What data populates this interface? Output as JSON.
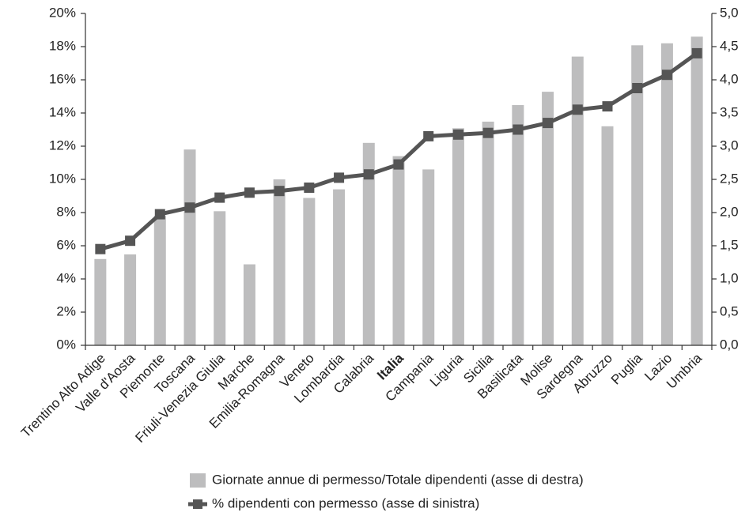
{
  "chart_data": {
    "type": "combo",
    "categories": [
      "Trentino Alto Adige",
      "Valle d'Aosta",
      "Piemonte",
      "Toscana",
      "Friuli-Venezia Giulia",
      "Marche",
      "Emilia-Romagna",
      "Veneto",
      "Lombardia",
      "Calabria",
      "Italia",
      "Campania",
      "Liguria",
      "Sicilia",
      "Basilicata",
      "Molise",
      "Sardegna",
      "Abruzzo",
      "Puglia",
      "Lazio",
      "Umbria"
    ],
    "highlight": "Italia",
    "series": [
      {
        "name": "Giornate annue di permesso/Totale dipendenti (asse di destra)",
        "type": "bar",
        "axis": "y2",
        "color": "#bdbdbe",
        "values": [
          1.3,
          1.37,
          1.95,
          2.95,
          2.02,
          1.22,
          2.5,
          2.22,
          2.35,
          3.05,
          2.85,
          2.65,
          3.27,
          3.37,
          3.62,
          3.82,
          4.35,
          3.3,
          4.52,
          4.55,
          4.65
        ]
      },
      {
        "name": "% dipendenti con permesso (asse di sinistra)",
        "type": "line",
        "axis": "y",
        "color": "#555555",
        "values": [
          5.8,
          6.3,
          7.9,
          8.3,
          8.9,
          9.2,
          9.3,
          9.5,
          10.1,
          10.3,
          10.9,
          12.6,
          12.7,
          12.8,
          13.0,
          13.4,
          14.2,
          14.4,
          15.5,
          16.3,
          17.6
        ]
      }
    ],
    "ylim": [
      0,
      20
    ],
    "yticks": [
      {
        "value": 0,
        "label": "0%"
      },
      {
        "value": 2,
        "label": "2%"
      },
      {
        "value": 4,
        "label": "4%"
      },
      {
        "value": 6,
        "label": "6%"
      },
      {
        "value": 8,
        "label": "8%"
      },
      {
        "value": 10,
        "label": "10%"
      },
      {
        "value": 12,
        "label": "12%"
      },
      {
        "value": 14,
        "label": "14%"
      },
      {
        "value": 16,
        "label": "16%"
      },
      {
        "value": 18,
        "label": "18%"
      },
      {
        "value": 20,
        "label": "20%"
      }
    ],
    "y2lim": [
      0,
      5
    ],
    "y2ticks": [
      {
        "value": 0,
        "label": "0,0"
      },
      {
        "value": 0.5,
        "label": "0,5"
      },
      {
        "value": 1,
        "label": "1,0"
      },
      {
        "value": 1.5,
        "label": "1,5"
      },
      {
        "value": 2,
        "label": "2,0"
      },
      {
        "value": 2.5,
        "label": "2,5"
      },
      {
        "value": 3,
        "label": "3,0"
      },
      {
        "value": 3.5,
        "label": "3,5"
      },
      {
        "value": 4,
        "label": "4,0"
      },
      {
        "value": 4.5,
        "label": "4,5"
      },
      {
        "value": 5,
        "label": "5,0"
      }
    ],
    "grid": false,
    "legend": "bottom"
  }
}
